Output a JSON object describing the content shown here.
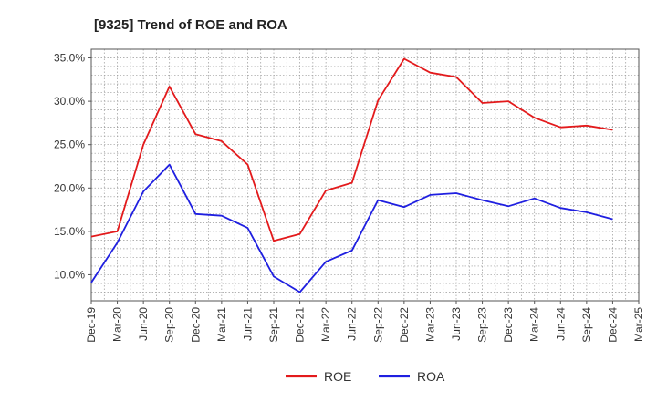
{
  "chart_data": {
    "type": "line",
    "title": "[9325]  Trend of ROE and ROA",
    "xlabel": "",
    "ylabel": "",
    "categories": [
      "Dec-19",
      "Mar-20",
      "Jun-20",
      "Sep-20",
      "Dec-20",
      "Mar-21",
      "Jun-21",
      "Sep-21",
      "Dec-21",
      "Mar-22",
      "Jun-22",
      "Sep-22",
      "Dec-22",
      "Mar-23",
      "Jun-23",
      "Sep-23",
      "Dec-23",
      "Mar-24",
      "Jun-24",
      "Sep-24",
      "Dec-24",
      "Mar-25"
    ],
    "ylim": [
      7.0,
      36.0
    ],
    "yticks": [
      10,
      15,
      20,
      25,
      30,
      35
    ],
    "ytick_labels": [
      "10.0%",
      "15.0%",
      "20.0%",
      "25.0%",
      "30.0%",
      "35.0%"
    ],
    "grid": true,
    "legend_position": "bottom-center",
    "series": [
      {
        "name": "ROE",
        "color": "#e31a1c",
        "values": [
          14.4,
          15.0,
          25.0,
          31.7,
          26.2,
          25.4,
          22.7,
          13.9,
          14.7,
          19.7,
          20.6,
          30.1,
          34.9,
          33.3,
          32.8,
          29.8,
          30.0,
          28.1,
          27.0,
          27.2,
          26.7,
          null
        ]
      },
      {
        "name": "ROA",
        "color": "#1f1fe0",
        "values": [
          9.1,
          13.7,
          19.6,
          22.7,
          17.0,
          16.8,
          15.4,
          9.8,
          8.0,
          11.5,
          12.8,
          18.6,
          17.8,
          19.2,
          19.4,
          18.6,
          17.9,
          18.8,
          17.7,
          17.2,
          16.4,
          null
        ]
      }
    ]
  }
}
